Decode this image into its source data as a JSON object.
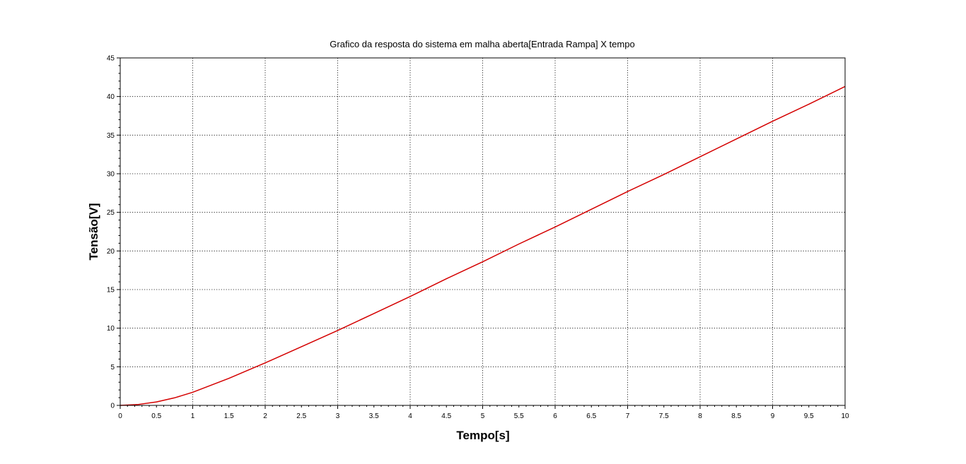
{
  "chart_data": {
    "type": "line",
    "title": "Grafico da resposta do sistema em malha aberta[Entrada Rampa] X tempo",
    "xlabel": "Tempo[s]",
    "ylabel": "Tensão[V]",
    "xlim": [
      0,
      10
    ],
    "ylim": [
      0,
      45
    ],
    "x_ticks": [
      0,
      0.5,
      1,
      1.5,
      2,
      2.5,
      3,
      3.5,
      4,
      4.5,
      5,
      5.5,
      6,
      6.5,
      7,
      7.5,
      8,
      8.5,
      9,
      9.5,
      10
    ],
    "x_tick_labels": [
      "0",
      "0.5",
      "1",
      "1.5",
      "2",
      "2.5",
      "3",
      "3.5",
      "4",
      "4.5",
      "5",
      "5.5",
      "6",
      "6.5",
      "7",
      "7.5",
      "8",
      "8.5",
      "9",
      "9.5",
      "10"
    ],
    "y_ticks": [
      0,
      5,
      10,
      15,
      20,
      25,
      30,
      35,
      40,
      45
    ],
    "y_tick_labels": [
      "0",
      "5",
      "10",
      "15",
      "20",
      "25",
      "30",
      "35",
      "40",
      "45"
    ],
    "grid": true,
    "series": [
      {
        "color": "#d40000",
        "x": [
          0,
          0.25,
          0.5,
          0.75,
          1,
          1.5,
          2,
          2.5,
          3,
          3.5,
          4,
          4.5,
          5,
          5.5,
          6,
          6.5,
          7,
          7.5,
          8,
          8.5,
          9,
          9.5,
          10
        ],
        "y": [
          0,
          0.12,
          0.45,
          0.98,
          1.7,
          3.5,
          5.5,
          7.6,
          9.7,
          11.9,
          14.1,
          16.4,
          18.6,
          20.9,
          23.1,
          25.4,
          27.7,
          29.9,
          32.2,
          34.5,
          36.8,
          39.0,
          41.3
        ]
      }
    ]
  }
}
